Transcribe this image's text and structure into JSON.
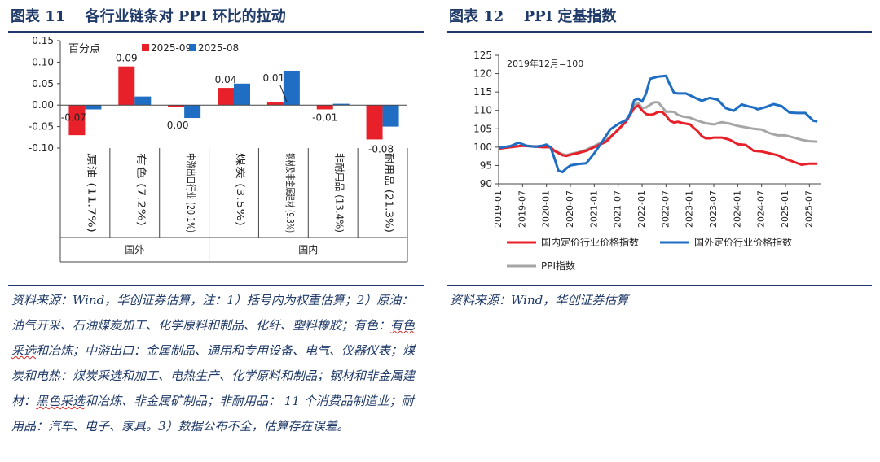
{
  "left": {
    "title": "图表 11　 各行业链条对 PPI 环比的拉动",
    "unit_label": "百分点",
    "source_note": {
      "pre": "资料来源：Wind，华创证券估算，注：1）括号内为权重估算；2）原油：油气开采、石油煤炭加工、化学原料和制品、化纤、塑料橡胶；有色：",
      "hl1": "有色采选",
      "mid1": "和冶炼；中游出口：金属制品、通用和专用设备、电气、仪器仪表；煤炭和电热：煤炭采选和加工、电热生产、化学原料和制品；钢材和非金属建材：",
      "hl2": "黑色采选",
      "post": "和冶炼、非金属矿制品；非耐用品： 11 个消费品制造业；耐用品：汽车、电子、家具。3）数据公布不全，估算存在误差。"
    },
    "chart_data": {
      "type": "bar",
      "categories": [
        "原油 (11.7%)",
        "有色 (7.2%)",
        "中游出口行业 (20.1%)",
        "煤炭 (3.5%)",
        "钢材及非金属建材 (9.3%)",
        "非耐用品 (13.4%)",
        "耐用品 (21.3%)"
      ],
      "groups": [
        {
          "label": "国外",
          "count": 3
        },
        {
          "label": "国内",
          "count": 4
        }
      ],
      "series": [
        {
          "name": "2025-09",
          "color": "#e8202a",
          "values": [
            -0.07,
            0.09,
            -0.005,
            0.04,
            0.006,
            -0.01,
            -0.08
          ]
        },
        {
          "name": "2025-08",
          "color": "#1f6ec4",
          "values": [
            -0.01,
            0.02,
            -0.03,
            0.05,
            0.08,
            0.003,
            -0.05
          ]
        }
      ],
      "data_labels": [
        "-0.07",
        "0.09",
        "0.00",
        "0.04",
        "0.01",
        "-0.01",
        "-0.08"
      ],
      "ylim": [
        -0.1,
        0.15
      ],
      "yticks": [
        "0.15",
        "0.10",
        "0.05",
        "0.00",
        "-0.05",
        "-0.10"
      ],
      "legend_position": "top"
    }
  },
  "right": {
    "title": "图表 12　 PPI 定基指数",
    "source_note": "资料来源：Wind，华创证券估算",
    "chart_data": {
      "type": "line",
      "annotation": "2019年12月=100",
      "ylim": [
        90,
        125
      ],
      "yticks": [
        90,
        95,
        100,
        105,
        110,
        115,
        120,
        125
      ],
      "xticks": [
        "2019-01",
        "2019-07",
        "2020-01",
        "2020-07",
        "2021-01",
        "2021-07",
        "2022-01",
        "2022-07",
        "2023-01",
        "2023-07",
        "2024-01",
        "2024-07",
        "2025-01",
        "2025-07"
      ],
      "x_index_labels": "months since 2019-01",
      "series": [
        {
          "name": "国内定价行业价格指数",
          "color": "#e8202a",
          "x": [
            0,
            6,
            11,
            13,
            14,
            16,
            17,
            18,
            20,
            22,
            24,
            27,
            30,
            32,
            33,
            34,
            35,
            36,
            37,
            38,
            39,
            40,
            41,
            42,
            43,
            44,
            45,
            46,
            47,
            48,
            49,
            50,
            51,
            52,
            53,
            54,
            56,
            58,
            60,
            62,
            64,
            66,
            68,
            70,
            72,
            74,
            76,
            78,
            80
          ],
          "y": [
            99.6,
            100.4,
            100.0,
            100.0,
            99.0,
            97.8,
            97.6,
            97.9,
            98.4,
            99.0,
            100.0,
            101.5,
            104.8,
            107.0,
            108.8,
            110.6,
            111.3,
            110.0,
            109.0,
            108.8,
            109.0,
            109.6,
            109.6,
            108.6,
            107.2,
            106.7,
            106.9,
            106.6,
            106.4,
            106.2,
            105.2,
            104.3,
            103.0,
            102.4,
            102.4,
            102.6,
            102.6,
            102.0,
            100.8,
            100.6,
            99.0,
            98.8,
            98.3,
            97.8,
            96.8,
            96.0,
            95.2,
            95.5,
            95.5
          ]
        },
        {
          "name": "国外定价行业价格指数",
          "color": "#1f6ec4",
          "x": [
            0,
            3,
            5,
            7,
            9,
            11,
            12,
            13,
            14,
            15,
            16,
            17,
            18,
            20,
            22,
            24,
            26,
            28,
            30,
            32,
            33,
            34,
            35,
            36,
            37,
            38,
            40,
            42,
            43,
            44,
            45,
            47,
            49,
            51,
            53,
            55,
            57,
            59,
            61,
            63,
            64,
            65,
            67,
            69,
            71,
            73,
            75,
            77,
            79,
            80
          ],
          "y": [
            99.8,
            100.3,
            101.2,
            100.4,
            100.1,
            100.4,
            100.7,
            100.0,
            97.0,
            93.6,
            93.2,
            94.2,
            95.0,
            95.4,
            95.6,
            98.3,
            101.5,
            104.8,
            106.3,
            107.4,
            109.1,
            112.7,
            113.2,
            112.4,
            114.6,
            118.6,
            119.2,
            119.4,
            117.0,
            114.8,
            114.6,
            114.6,
            113.6,
            112.6,
            113.4,
            112.9,
            110.6,
            109.9,
            111.6,
            111.0,
            110.8,
            110.3,
            110.9,
            111.7,
            111.2,
            109.4,
            109.3,
            109.3,
            107.2,
            107.0
          ]
        },
        {
          "name": "PPI指数",
          "color": "#a6a6a6",
          "x": [
            0,
            6,
            11,
            13,
            14,
            16,
            17,
            18,
            20,
            22,
            24,
            27,
            30,
            32,
            33,
            34,
            35,
            36,
            37,
            38,
            39,
            40,
            41,
            42,
            43,
            44,
            45,
            46,
            48,
            50,
            52,
            54,
            56,
            58,
            60,
            62,
            64,
            66,
            68,
            70,
            72,
            74,
            76,
            78,
            80
          ],
          "y": [
            99.7,
            100.4,
            100.1,
            99.9,
            99.0,
            98.1,
            97.8,
            98.1,
            98.6,
            99.3,
            100.3,
            102.0,
            104.6,
            107.1,
            109.0,
            111.4,
            112.0,
            110.7,
            110.8,
            111.5,
            112.2,
            112.2,
            111.0,
            109.6,
            109.7,
            109.6,
            108.8,
            108.4,
            108.0,
            107.2,
            106.5,
            106.2,
            106.8,
            106.4,
            105.8,
            105.4,
            105.0,
            104.8,
            103.8,
            103.2,
            103.2,
            102.6,
            102.0,
            101.6,
            101.5
          ]
        }
      ],
      "legend_position": "bottom"
    }
  }
}
